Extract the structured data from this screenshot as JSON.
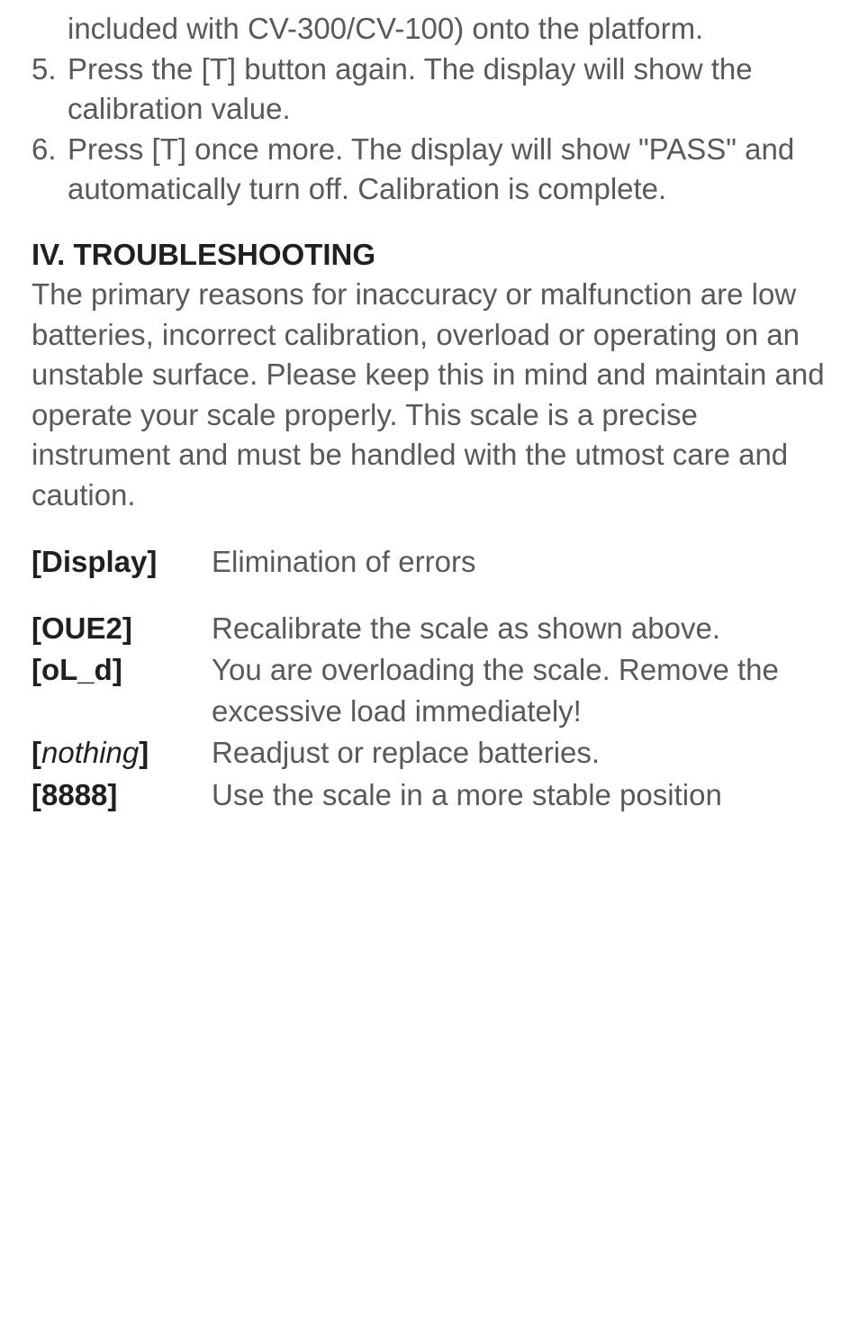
{
  "steps": {
    "step4_cont": "included with CV-300/CV-100) onto the platform.",
    "step5_num": "5.",
    "step5_text": "Press the [T] button again. The display will show the calibration value.",
    "step6_num": "6.",
    "step6_text": "Press [T] once more. The display will show \"PASS\" and automatically turn off. Calibration is complete."
  },
  "section": {
    "heading": "IV. TROUBLESHOOTING",
    "paragraph": "The primary reasons for inaccuracy or malfunction are low batteries, incorrect calibration, overload or operating on an unstable surface. Please keep this in mind and maintain and operate your scale properly. This scale is a precise instrument and must be handled with the utmost care and caution."
  },
  "errors": {
    "header_code": "[Display]",
    "header_desc": "Elimination of errors",
    "row1_code": "[OUE2]",
    "row1_desc": "Recalibrate the scale as shown above.",
    "row2_code": "[oL_d]",
    "row2_desc": "You are overloading the scale. Remove the excessive load immediately!",
    "row3_open": "[",
    "row3_italic": "nothing",
    "row3_close": "]",
    "row3_desc": "Readjust or replace batteries.",
    "row4_code": "[8888]",
    "row4_desc": "Use the scale in a more stable position"
  }
}
